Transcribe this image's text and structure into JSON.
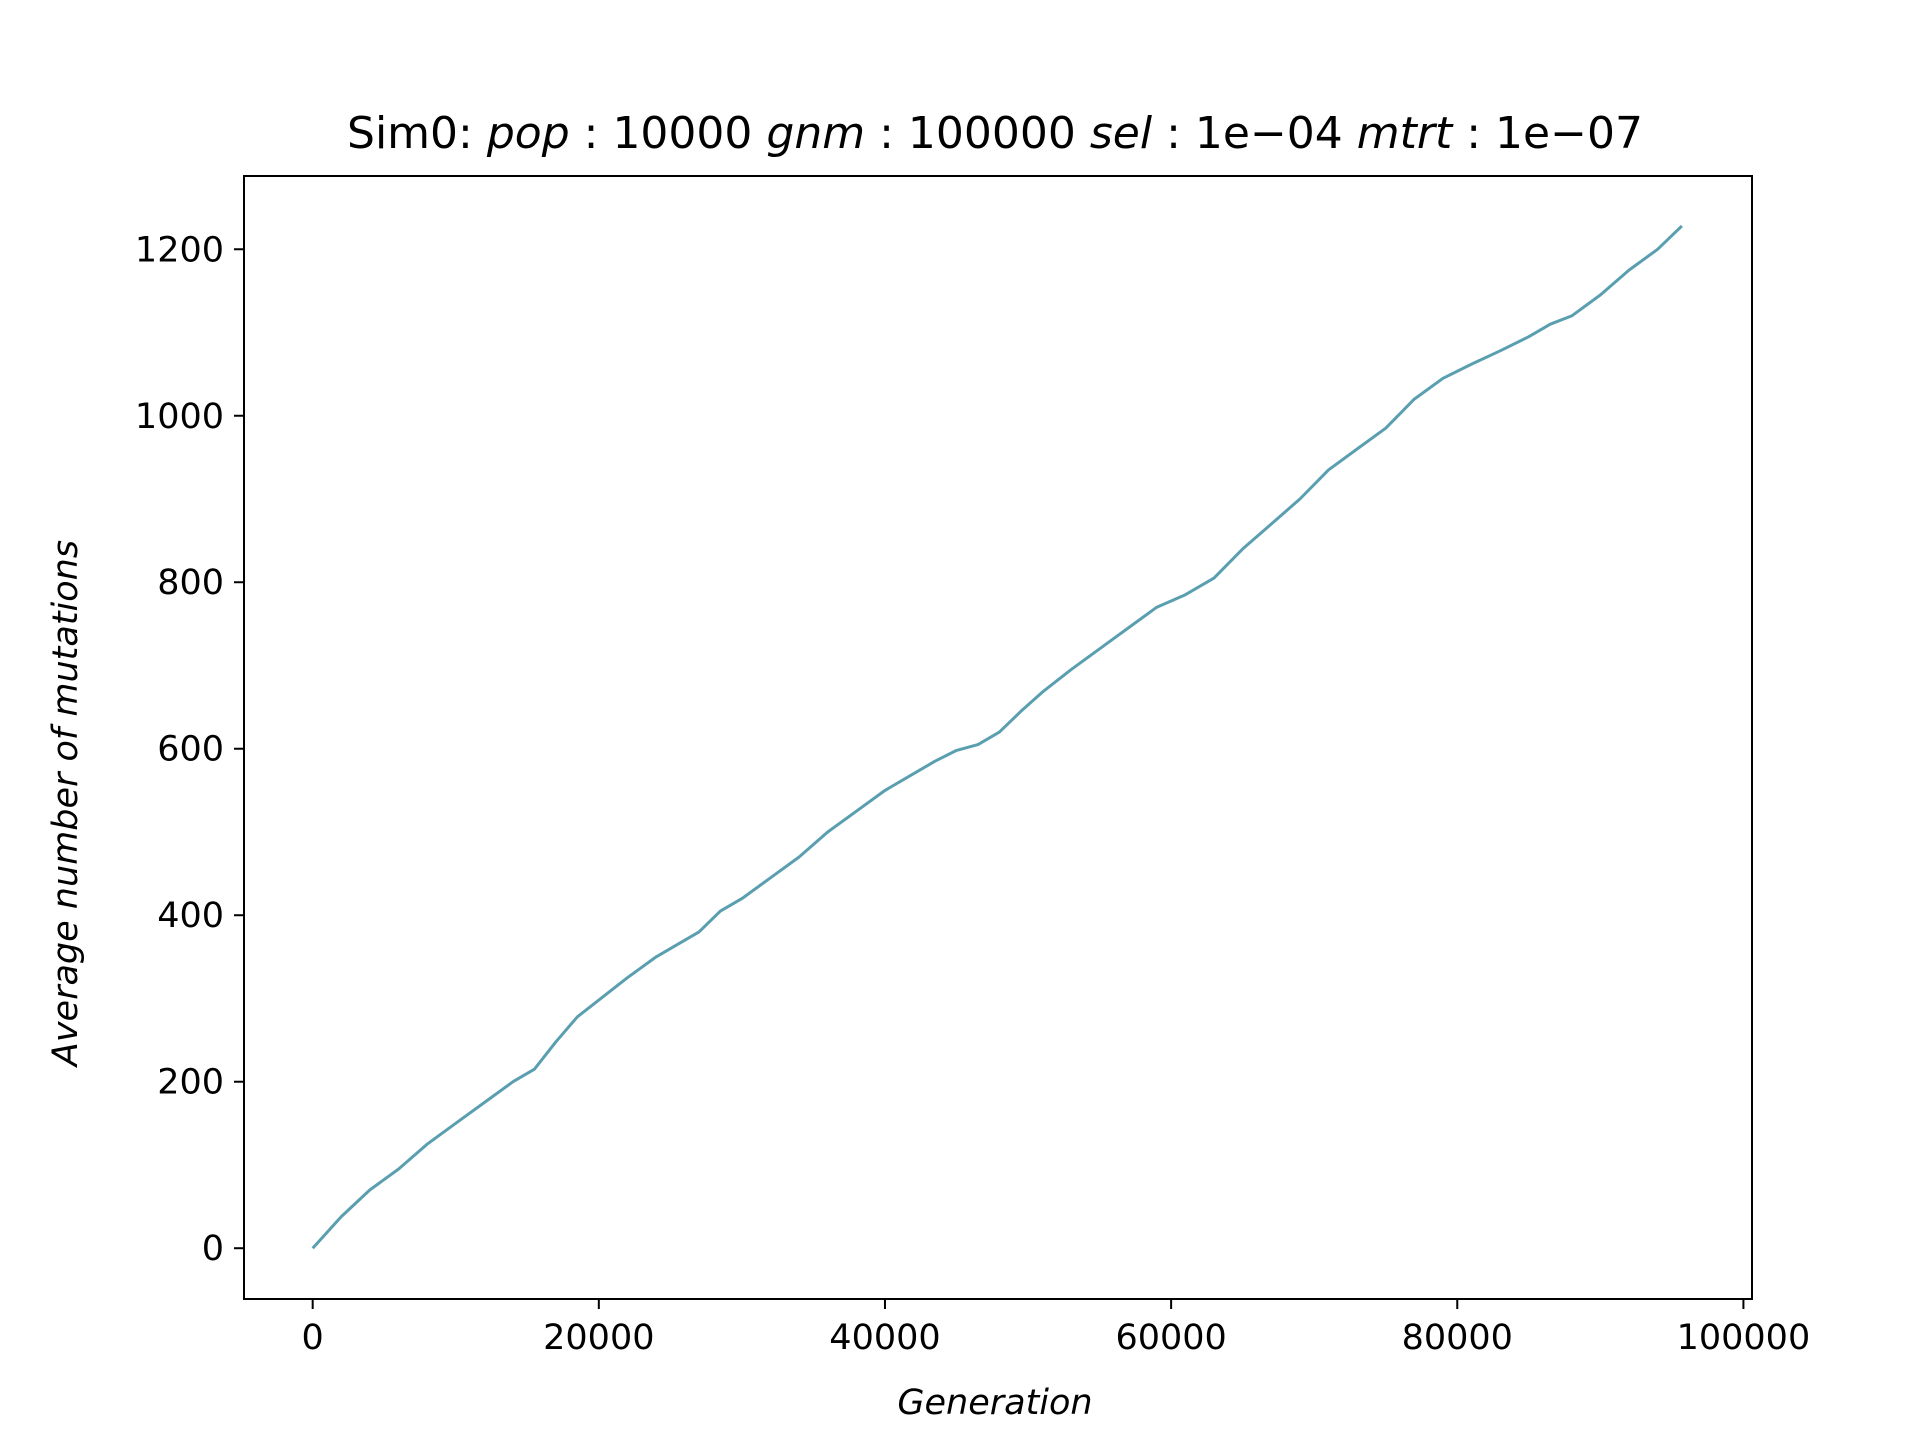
{
  "chart_data": {
    "type": "line",
    "title": {
      "prefix": "Sim0: ",
      "parts": [
        {
          "name": "pop",
          "value": "10000"
        },
        {
          "name": "gnm",
          "value": "100000"
        },
        {
          "name": "sel",
          "value": "1e−04"
        },
        {
          "name": "mtrt",
          "value": "1e−07"
        }
      ]
    },
    "xlabel": "Generation",
    "ylabel": "Average number of mutations",
    "xlim": [
      -4800,
      100600
    ],
    "ylim": [
      -61,
      1288
    ],
    "xticks": [
      0,
      20000,
      40000,
      60000,
      80000,
      100000
    ],
    "xtick_labels": [
      "0",
      "20000",
      "40000",
      "60000",
      "80000",
      "100000"
    ],
    "yticks": [
      0,
      200,
      400,
      600,
      800,
      1000,
      1200
    ],
    "ytick_labels": [
      "0",
      "200",
      "400",
      "600",
      "800",
      "1000",
      "1200"
    ],
    "grid": false,
    "series": [
      {
        "color": "#5a9fb0",
        "x": [
          0,
          2000,
          4000,
          6000,
          8000,
          10000,
          12000,
          14000,
          15500,
          17000,
          18500,
          20000,
          22000,
          24000,
          25500,
          27000,
          28500,
          30000,
          32000,
          34000,
          36000,
          38000,
          40000,
          42000,
          43500,
          45000,
          46500,
          48000,
          49500,
          51000,
          53000,
          55000,
          57000,
          59000,
          61000,
          63000,
          65000,
          67000,
          69000,
          71000,
          73000,
          75000,
          77000,
          79000,
          81000,
          83000,
          85000,
          86500,
          88000,
          90000,
          92000,
          94000,
          95700
        ],
        "y": [
          0,
          38,
          70,
          95,
          125,
          150,
          175,
          200,
          215,
          248,
          278,
          298,
          325,
          350,
          365,
          380,
          405,
          420,
          445,
          470,
          500,
          525,
          550,
          570,
          585,
          598,
          605,
          620,
          645,
          668,
          695,
          720,
          745,
          770,
          785,
          805,
          840,
          870,
          900,
          935,
          960,
          985,
          1020,
          1045,
          1062,
          1078,
          1095,
          1110,
          1120,
          1145,
          1175,
          1200,
          1228
        ]
      }
    ]
  }
}
